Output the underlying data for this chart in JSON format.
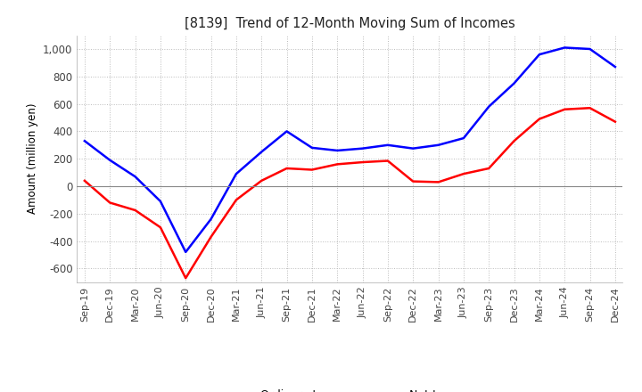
{
  "title": "[8139]  Trend of 12-Month Moving Sum of Incomes",
  "ylabel": "Amount (million yen)",
  "ylim": [
    -700,
    1100
  ],
  "yticks": [
    -600,
    -400,
    -200,
    0,
    200,
    400,
    600,
    800,
    1000
  ],
  "background_color": "#ffffff",
  "grid_color": "#bbbbbb",
  "ordinary_income_color": "#0000ff",
  "net_income_color": "#ff0000",
  "x_labels": [
    "Sep-19",
    "Dec-19",
    "Mar-20",
    "Jun-20",
    "Sep-20",
    "Dec-20",
    "Mar-21",
    "Jun-21",
    "Sep-21",
    "Dec-21",
    "Mar-22",
    "Jun-22",
    "Sep-22",
    "Dec-22",
    "Mar-23",
    "Jun-23",
    "Sep-23",
    "Dec-23",
    "Mar-24",
    "Jun-24",
    "Sep-24",
    "Dec-24"
  ],
  "ordinary_income": [
    330,
    190,
    70,
    -110,
    -480,
    -240,
    90,
    250,
    400,
    280,
    260,
    275,
    300,
    275,
    300,
    350,
    580,
    750,
    960,
    1010,
    1000,
    870
  ],
  "net_income": [
    40,
    -120,
    -175,
    -300,
    -670,
    -370,
    -100,
    40,
    130,
    120,
    160,
    175,
    185,
    35,
    30,
    90,
    130,
    330,
    490,
    560,
    570,
    470
  ]
}
